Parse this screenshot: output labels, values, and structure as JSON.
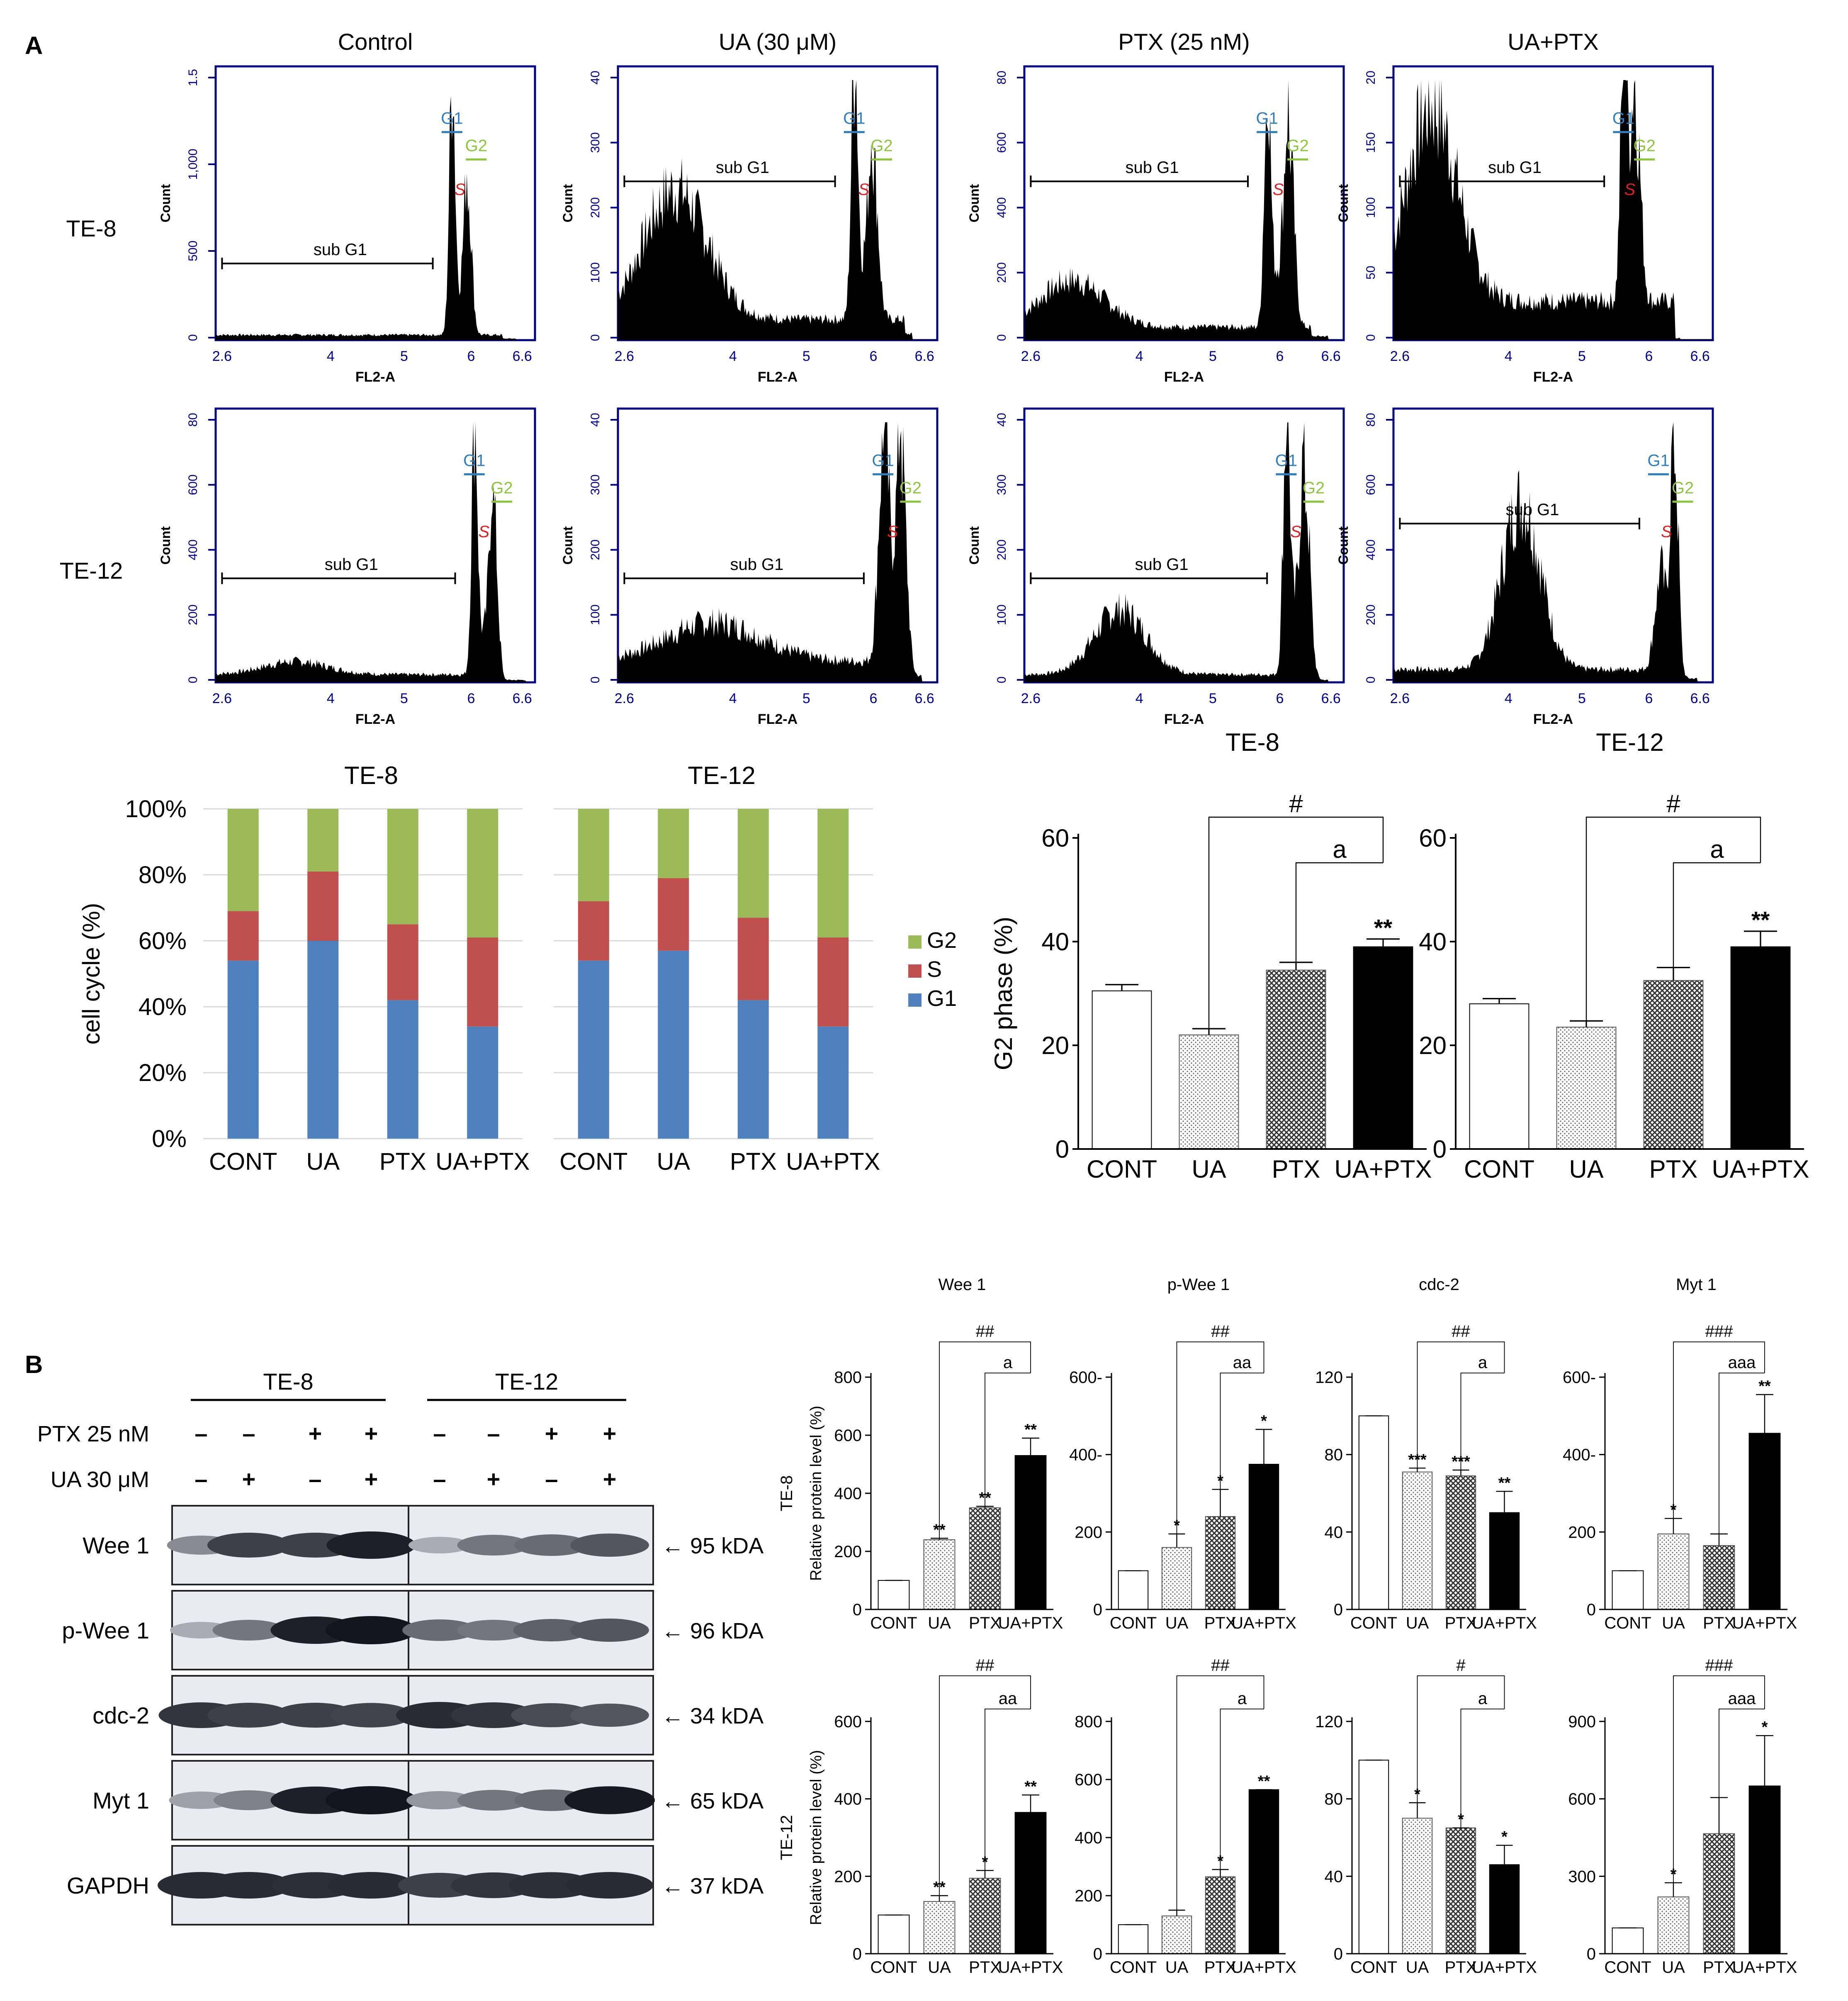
{
  "panel_labels": {
    "a": "A",
    "b": "B"
  },
  "flow": {
    "columns": [
      "Control",
      "UA (30 μM)",
      "PTX (25 nM)",
      "UA+PTX"
    ],
    "rows": [
      "TE-8",
      "TE-12"
    ],
    "xaxis_label": "FL2-A",
    "yaxis_label": "Count",
    "x_ticks": [
      "2.6",
      "4",
      "5",
      "6",
      "6.6"
    ],
    "gate_labels": {
      "sub": "sub G1",
      "g1": "G1",
      "s": "S",
      "g2": "G2"
    },
    "y_ticks": [
      [
        [
          "0",
          "500",
          "1,000",
          "1.5"
        ],
        [
          "0",
          "100",
          "200",
          "300",
          "40"
        ],
        [
          "0",
          "200",
          "400",
          "600",
          "80"
        ],
        [
          "0",
          "50",
          "100",
          "150",
          "20"
        ]
      ],
      [
        [
          "0",
          "200",
          "400",
          "600",
          "80"
        ],
        [
          "0",
          "100",
          "200",
          "300",
          "40"
        ],
        [
          "0",
          "100",
          "200",
          "300",
          "40"
        ],
        [
          "0",
          "200",
          "400",
          "600",
          "80"
        ]
      ]
    ]
  },
  "colors": {
    "g1": "#4e81bd",
    "s": "#c0504e",
    "g2": "#9bbb59",
    "flow_g1": "#2e7fc2",
    "flow_s": "#e02020",
    "flow_g2": "#8cc63f"
  },
  "chart_data": [
    {
      "type": "bar",
      "stacked": true,
      "title": "TE-8",
      "ylabel": "cell cycle (%)",
      "ylim": [
        0,
        100
      ],
      "y_ticks": [
        "0%",
        "20%",
        "40%",
        "60%",
        "80%",
        "100%"
      ],
      "categories": [
        "CONT",
        "UA",
        "PTX",
        "UA+PTX"
      ],
      "series": [
        {
          "name": "G1",
          "values": [
            54,
            60,
            42,
            34
          ]
        },
        {
          "name": "S",
          "values": [
            15,
            21,
            23,
            27
          ]
        },
        {
          "name": "G2",
          "values": [
            31,
            19,
            35,
            39
          ]
        }
      ],
      "legend_position": "right"
    },
    {
      "type": "bar",
      "stacked": true,
      "title": "TE-12",
      "ylim": [
        0,
        100
      ],
      "categories": [
        "CONT",
        "UA",
        "PTX",
        "UA+PTX"
      ],
      "series": [
        {
          "name": "G1",
          "values": [
            54,
            57,
            42,
            34
          ]
        },
        {
          "name": "S",
          "values": [
            18,
            22,
            25,
            27
          ]
        },
        {
          "name": "G2",
          "values": [
            28,
            21,
            33,
            39
          ]
        }
      ]
    },
    {
      "type": "bar",
      "title": "TE-8",
      "ylabel": "G2 phase (%)",
      "ylim": [
        0,
        60
      ],
      "y_ticks": [
        "0",
        "20",
        "40",
        "60"
      ],
      "categories": [
        "CONT",
        "UA",
        "PTX",
        "UA+PTX"
      ],
      "values": [
        30.5,
        22,
        34.5,
        39
      ],
      "errors": [
        1.2,
        1.2,
        1.5,
        1.5
      ],
      "stars": [
        "",
        "",
        "",
        "**"
      ],
      "brackets": [
        "#",
        "a"
      ]
    },
    {
      "type": "bar",
      "title": "TE-12",
      "ylim": [
        0,
        60
      ],
      "y_ticks": [
        "0",
        "20",
        "40",
        "60"
      ],
      "categories": [
        "CONT",
        "UA",
        "PTX",
        "UA+PTX"
      ],
      "values": [
        28,
        23.5,
        32.5,
        39
      ],
      "errors": [
        1.0,
        1.2,
        2.5,
        3.0
      ],
      "stars": [
        "",
        "",
        "",
        "**"
      ],
      "brackets": [
        "#",
        "a"
      ]
    },
    {
      "type": "bar",
      "title": "Wee 1",
      "ylabel": "Relative protein level (%)",
      "row_label": "TE-8",
      "ylim": [
        0,
        800
      ],
      "y_ticks": [
        "0",
        "200",
        "400",
        "600",
        "800"
      ],
      "categories": [
        "CONT",
        "UA",
        "PTX",
        "UA+PTX"
      ],
      "values": [
        100,
        240,
        350,
        530
      ],
      "errors": [
        0,
        5,
        5,
        60
      ],
      "stars": [
        "",
        "**",
        "**",
        "**"
      ],
      "brackets": [
        "##",
        "a"
      ]
    },
    {
      "type": "bar",
      "title": "p-Wee 1",
      "ylim": [
        0,
        600
      ],
      "y_ticks": [
        "0",
        "200",
        "400-",
        "600-"
      ],
      "categories": [
        "CONT",
        "UA",
        "PTX",
        "UA+PTX"
      ],
      "values": [
        100,
        160,
        240,
        375
      ],
      "errors": [
        0,
        35,
        70,
        90
      ],
      "stars": [
        "",
        "*",
        "*",
        "*"
      ],
      "brackets": [
        "##",
        "aa"
      ]
    },
    {
      "type": "bar",
      "title": "cdc-2",
      "ylim": [
        0,
        120
      ],
      "y_ticks": [
        "0",
        "40",
        "80",
        "120"
      ],
      "categories": [
        "CONT",
        "UA",
        "PTX",
        "UA+PTX"
      ],
      "values": [
        100,
        71,
        69,
        50
      ],
      "errors": [
        0,
        2,
        3,
        11
      ],
      "stars": [
        "",
        "***",
        "***",
        "**"
      ],
      "brackets": [
        "##",
        "a"
      ]
    },
    {
      "type": "bar",
      "title": "Myt 1",
      "ylim": [
        0,
        600
      ],
      "y_ticks": [
        "0",
        "200",
        "400-",
        "600-"
      ],
      "categories": [
        "CONT",
        "UA",
        "PTX",
        "UA+PTX"
      ],
      "values": [
        100,
        195,
        165,
        455
      ],
      "errors": [
        0,
        40,
        30,
        100
      ],
      "stars": [
        "",
        "*",
        "",
        "**"
      ],
      "brackets": [
        "###",
        "aaa"
      ]
    },
    {
      "type": "bar",
      "ylabel": "Relative protein level (%)",
      "row_label": "TE-12",
      "ylim": [
        0,
        600
      ],
      "y_ticks": [
        "0",
        "200",
        "400",
        "600"
      ],
      "categories": [
        "CONT",
        "UA",
        "PTX",
        "UA+PTX"
      ],
      "values": [
        100,
        135,
        195,
        365
      ],
      "errors": [
        0,
        15,
        20,
        45
      ],
      "stars": [
        "",
        "**",
        "*",
        "**"
      ],
      "brackets": [
        "##",
        "aa"
      ]
    },
    {
      "type": "bar",
      "ylim": [
        0,
        800
      ],
      "y_ticks": [
        "0",
        "200",
        "400",
        "600",
        "800"
      ],
      "categories": [
        "CONT",
        "UA",
        "PTX",
        "UA+PTX"
      ],
      "values": [
        100,
        130,
        265,
        565
      ],
      "errors": [
        0,
        20,
        25,
        0
      ],
      "stars": [
        "",
        "",
        "*",
        "**"
      ],
      "brackets": [
        "##",
        "a"
      ]
    },
    {
      "type": "bar",
      "ylim": [
        0,
        120
      ],
      "y_ticks": [
        "0",
        "40",
        "80",
        "120"
      ],
      "categories": [
        "CONT",
        "UA",
        "PTX",
        "UA+PTX"
      ],
      "values": [
        100,
        70,
        65,
        46
      ],
      "errors": [
        0,
        8,
        0,
        10
      ],
      "stars": [
        "",
        "*",
        "*",
        "*"
      ],
      "brackets": [
        "#",
        "a"
      ]
    },
    {
      "type": "bar",
      "ylim": [
        0,
        900
      ],
      "y_ticks": [
        "0",
        "300",
        "600",
        "900"
      ],
      "categories": [
        "CONT",
        "UA",
        "PTX",
        "UA+PTX"
      ],
      "values": [
        100,
        220,
        465,
        650
      ],
      "errors": [
        0,
        55,
        140,
        195
      ],
      "stars": [
        "",
        "*",
        "",
        "*"
      ],
      "brackets": [
        "###",
        "aaa"
      ]
    }
  ],
  "blot": {
    "groups": [
      "TE-8",
      "TE-12"
    ],
    "treatments": [
      {
        "label": "PTX 25 nM",
        "signs": [
          "–",
          "–",
          "+",
          "+",
          "–",
          "–",
          "+",
          "+"
        ]
      },
      {
        "label": "UA 30 μM",
        "signs": [
          "–",
          "+",
          "–",
          "+",
          "–",
          "+",
          "–",
          "+"
        ]
      }
    ],
    "proteins": [
      {
        "name": "Wee 1",
        "kda": "← 95 kDA",
        "intensity": [
          0.45,
          0.8,
          0.8,
          0.95,
          0.3,
          0.55,
          0.6,
          0.7
        ]
      },
      {
        "name": "p-Wee 1",
        "kda": "← 96 kDA",
        "intensity": [
          0.3,
          0.55,
          0.95,
          1.0,
          0.6,
          0.55,
          0.65,
          0.7
        ]
      },
      {
        "name": "cdc-2",
        "kda": "← 34 kDA",
        "intensity": [
          0.85,
          0.8,
          0.8,
          0.78,
          0.9,
          0.85,
          0.75,
          0.7
        ]
      },
      {
        "name": "Myt 1",
        "kda": "← 65 kDA",
        "intensity": [
          0.35,
          0.5,
          0.95,
          1.0,
          0.4,
          0.55,
          0.6,
          0.98
        ]
      },
      {
        "name": "GAPDH",
        "kda": "← 37 kDA",
        "intensity": [
          0.9,
          0.9,
          0.88,
          0.9,
          0.8,
          0.85,
          0.88,
          0.9
        ]
      }
    ]
  }
}
